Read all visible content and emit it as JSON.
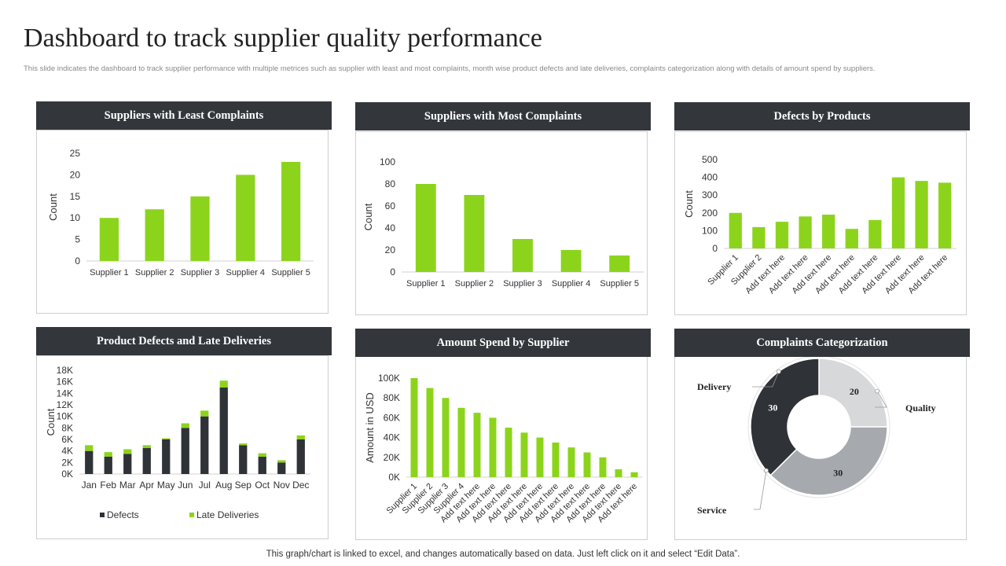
{
  "page": {
    "title": "Dashboard to track supplier quality performance",
    "subtitle": "This slide indicates the dashboard to track supplier performance with multiple metrices such as supplier with least and most complaints, month wise product defects and late deliveries, complaints categorization along with details of amount spend by suppliers.",
    "footer": "This graph/chart is linked to excel, and changes automatically based on data. Just left click on it and select “Edit Data”."
  },
  "colors": {
    "green": "#8cd41c",
    "dark": "#2f3237",
    "header": "#33373c",
    "gray_mid": "#a6aaae",
    "gray_light": "#d6d8da"
  },
  "chart_data": [
    {
      "id": "least",
      "type": "bar",
      "title": "Suppliers with  Least Complaints",
      "ylabel": "Count",
      "xlabel": "",
      "categories": [
        "Supplier 1",
        "Supplier 2",
        "Supplier 3",
        "Supplier 4",
        "Supplier 5"
      ],
      "values": [
        10,
        12,
        15,
        20,
        23
      ],
      "ylim": [
        0,
        25
      ],
      "yticks": [
        "0",
        "5",
        "10",
        "15",
        "20",
        "25"
      ],
      "tick_step": 5,
      "rotate_labels": false
    },
    {
      "id": "most",
      "type": "bar",
      "title": "Suppliers with  Most Complaints",
      "ylabel": "Count",
      "xlabel": "",
      "categories": [
        "Supplier 1",
        "Supplier 2",
        "Supplier 3",
        "Supplier 4",
        "Supplier 5"
      ],
      "values": [
        80,
        70,
        30,
        20,
        15
      ],
      "ylim": [
        0,
        100
      ],
      "yticks": [
        "0",
        "20",
        "40",
        "60",
        "80",
        "100"
      ],
      "tick_step": 20,
      "rotate_labels": false
    },
    {
      "id": "defects",
      "type": "bar",
      "title": "Defects by Products",
      "ylabel": "Count",
      "xlabel": "",
      "categories": [
        "Supplier 1",
        "Supplier 2",
        "Add text here",
        "Add text here",
        "Add text here",
        "Add text here",
        "Add text here",
        "Add text here",
        "Add text here",
        "Add text here"
      ],
      "values": [
        200,
        120,
        150,
        180,
        190,
        110,
        160,
        400,
        380,
        370
      ],
      "ylim": [
        0,
        500
      ],
      "yticks": [
        "0",
        "100",
        "200",
        "300",
        "400",
        "500"
      ],
      "tick_step": 100,
      "rotate_labels": true
    },
    {
      "id": "monthly",
      "type": "bar",
      "stacked": true,
      "title": "Product  Defects and Late Deliveries",
      "ylabel": "Count",
      "xlabel": "",
      "categories": [
        "Jan",
        "Feb",
        "Mar",
        "Apr",
        "May",
        "Jun",
        "Jul",
        "Aug",
        "Sep",
        "Oct",
        "Nov",
        "Dec"
      ],
      "series": [
        {
          "name": "Defects",
          "values": [
            4000,
            3000,
            3500,
            4500,
            6000,
            8000,
            10000,
            15000,
            5000,
            3000,
            2000,
            6000
          ],
          "color": "#2f3237"
        },
        {
          "name": "Late Deliveries",
          "values": [
            1000,
            800,
            800,
            500,
            200,
            800,
            1000,
            1200,
            300,
            600,
            400,
            700
          ],
          "color": "#8cd41c"
        }
      ],
      "ylim": [
        0,
        18000
      ],
      "yticks": [
        "0K",
        "2K",
        "4K",
        "6K",
        "8K",
        "10K",
        "12K",
        "14K",
        "16K",
        "18K"
      ],
      "tick_step": 2000,
      "legend": "bottom"
    },
    {
      "id": "spend",
      "type": "bar",
      "title": "Amount  Spend by Supplier",
      "ylabel": "Amount in USD",
      "xlabel": "",
      "categories": [
        "Supplier 1",
        "Supplier 2",
        "Supplier 3",
        "Supplier 4",
        "Add text here",
        "Add text here",
        "Add text here",
        "Add text here",
        "Add text here",
        "Add text here",
        "Add text here",
        "Add text here",
        "Add text here",
        "Add text here",
        "Add text here"
      ],
      "values": [
        100000,
        90000,
        80000,
        70000,
        65000,
        60000,
        50000,
        45000,
        40000,
        35000,
        30000,
        25000,
        20000,
        8000,
        5000
      ],
      "ylim": [
        0,
        100000
      ],
      "yticks": [
        "0K",
        "20K",
        "40K",
        "60K",
        "80K",
        "100K"
      ],
      "tick_step": 20000,
      "rotate_labels": true
    },
    {
      "id": "complaints",
      "type": "pie",
      "donut": true,
      "title": "Complaints  Categorization",
      "slices": [
        {
          "label": "Quality",
          "value": 20,
          "color": "#d6d8da"
        },
        {
          "label": "Service",
          "value": 30,
          "color": "#a6aaae"
        },
        {
          "label": "Delivery",
          "value": 30,
          "color": "#2f3237"
        }
      ]
    }
  ]
}
